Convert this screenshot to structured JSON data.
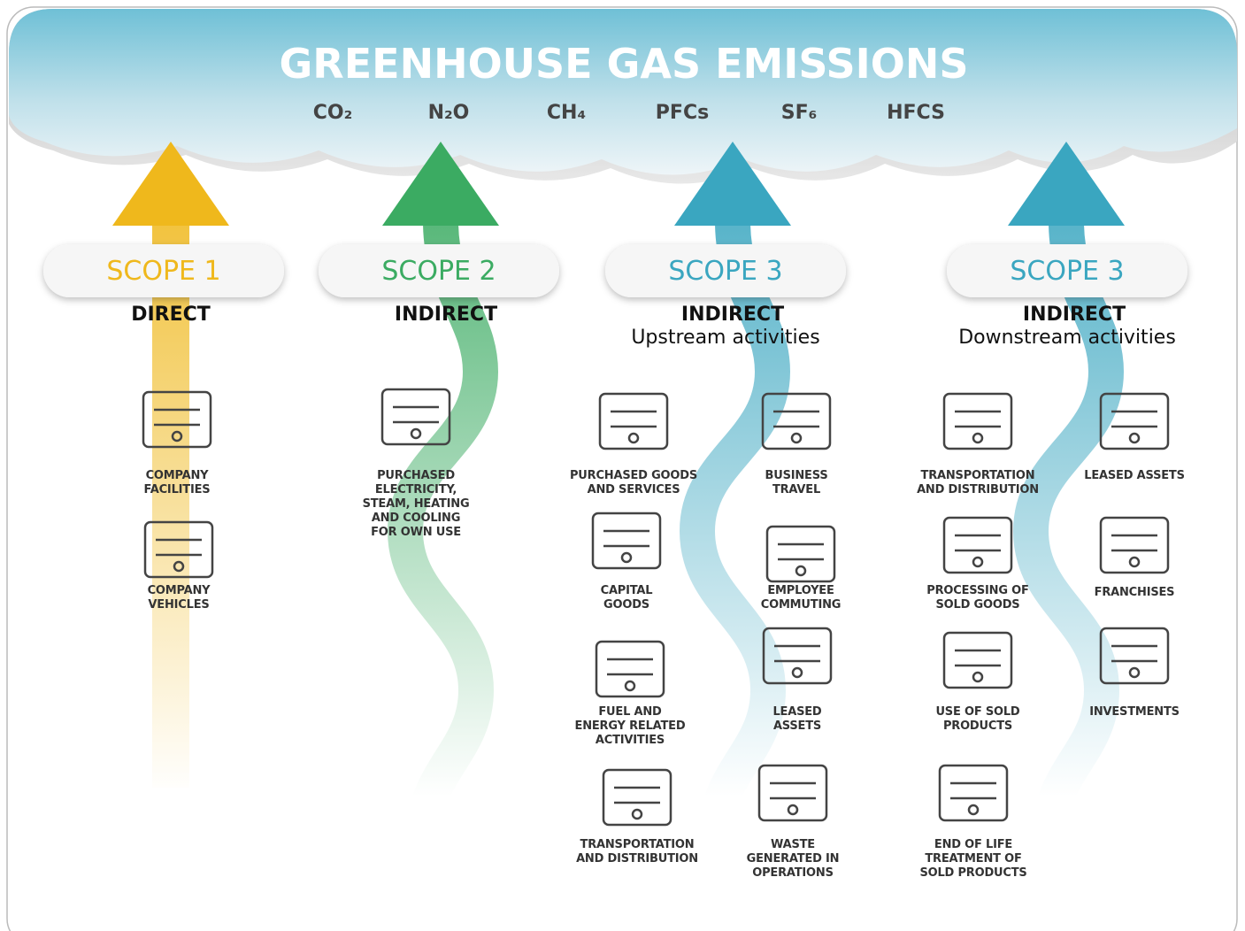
{
  "header": {
    "title": "GREENHOUSE GAS EMISSIONS",
    "gases": [
      "CO₂",
      "N₂O",
      "CH₄",
      "PFCs",
      "SF₆",
      "HFCS"
    ]
  },
  "scopes": [
    {
      "label": "SCOPE 1",
      "color": "#efb81c",
      "kind": "DIRECT",
      "items": [
        "COMPANY\nFACILITIES",
        "COMPANY\nVEHICLES"
      ]
    },
    {
      "label": "SCOPE 2",
      "color": "#3bab62",
      "kind": "INDIRECT",
      "items": [
        "PURCHASED\nELECTRICITY,\nSTEAM, HEATING\nAND COOLING\nFOR OWN USE"
      ]
    },
    {
      "label": "SCOPE 3",
      "color": "#3aa6c0",
      "kind": "INDIRECT",
      "subtitle": "Upstream activities",
      "items": [
        "PURCHASED GOODS\nAND SERVICES",
        "BUSINESS\nTRAVEL",
        "CAPITAL\nGOODS",
        "EMPLOYEE\nCOMMUTING",
        "FUEL AND\nENERGY RELATED\nACTIVITIES",
        "LEASED\nASSETS",
        "TRANSPORTATION\nAND DISTRIBUTION",
        "WASTE\nGENERATED IN\nOPERATIONS"
      ]
    },
    {
      "label": "SCOPE 3",
      "color": "#3aa6c0",
      "kind": "INDIRECT",
      "subtitle": "Downstream activities",
      "items": [
        "TRANSPORTATION\nAND DISTRIBUTION",
        "LEASED ASSETS",
        "PROCESSING OF\nSOLD GOODS",
        "FRANCHISES",
        "USE OF SOLD\nPRODUCTS",
        "INVESTMENTS",
        "END OF LIFE\nTREATMENT OF\nSOLD PRODUCTS"
      ]
    }
  ]
}
